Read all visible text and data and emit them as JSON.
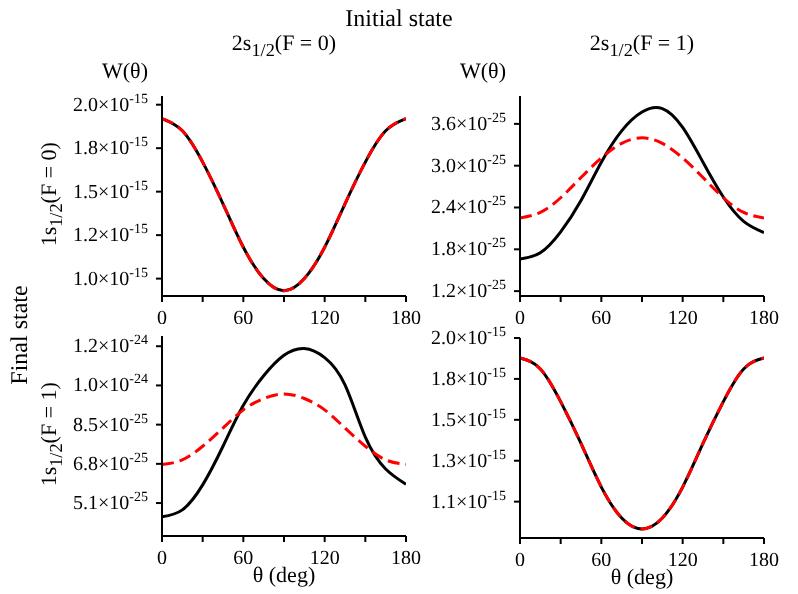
{
  "chart_data": [
    {
      "type": "line",
      "title": "2s$_{1/2}$(F = 0)",
      "ylabel": "1s$_{1/2}$(F = 0)",
      "annotations": [
        "W(θ)",
        "Initial state",
        "Final state"
      ],
      "x": [
        0,
        15,
        30,
        45,
        60,
        75,
        90,
        105,
        120,
        135,
        150,
        165,
        180
      ],
      "series": [
        {
          "color": "#000000",
          "line_style": "solid",
          "values": [
            1.92e-15,
            1.85e-15,
            1.67e-15,
            1.43e-15,
            1.18e-15,
            1e-15,
            9.3e-16,
            1e-15,
            1.18e-15,
            1.43e-15,
            1.67e-15,
            1.85e-15,
            1.92e-15
          ]
        },
        {
          "color": "#ff0000",
          "line_style": "dashed",
          "values": [
            1.92e-15,
            1.85e-15,
            1.67e-15,
            1.43e-15,
            1.18e-15,
            1e-15,
            9.3e-16,
            1e-15,
            1.18e-15,
            1.43e-15,
            1.67e-15,
            1.85e-15,
            1.92e-15
          ]
        }
      ],
      "xlim": [
        0,
        180
      ],
      "xticks": [
        0,
        {
          "value": 30,
          "label": null
        },
        60,
        {
          "value": 90,
          "label": null
        },
        120,
        {
          "value": 150,
          "label": null
        },
        180
      ],
      "ylim": [
        9e-16,
        2.05e-15
      ],
      "yticks": [
        {
          "value": 1e-15,
          "label": "1.0×10$^{-15}$"
        },
        {
          "value": 1.25e-15,
          "label": "1.2×10$^{-15}$"
        },
        {
          "value": 1.5e-15,
          "label": "1.5×10$^{-15}$"
        },
        {
          "value": 1.75e-15,
          "label": "1.8×10$^{-15}$"
        },
        {
          "value": 2e-15,
          "label": "2.0×10$^{-15}$"
        }
      ]
    },
    {
      "type": "line",
      "title": "2s$_{1/2}$(F = 1)",
      "annotations": [
        "W(θ)"
      ],
      "x": [
        0,
        15,
        30,
        45,
        60,
        75,
        90,
        105,
        120,
        135,
        150,
        165,
        180
      ],
      "series": [
        {
          "color": "#000000",
          "line_style": "solid",
          "values": [
            1.66e-25,
            1.75e-25,
            2.05e-25,
            2.5e-25,
            3.05e-25,
            3.5e-25,
            3.77e-25,
            3.82e-25,
            3.55e-25,
            3.05e-25,
            2.55e-25,
            2.2e-25,
            2.04e-25
          ]
        },
        {
          "color": "#ff0000",
          "line_style": "dashed",
          "values": [
            2.25e-25,
            2.33e-25,
            2.54e-25,
            2.83e-25,
            3.11e-25,
            3.32e-25,
            3.4e-25,
            3.32e-25,
            3.11e-25,
            2.83e-25,
            2.54e-25,
            2.33e-25,
            2.25e-25
          ]
        }
      ],
      "xlim": [
        0,
        180
      ],
      "xticks": [
        0,
        {
          "value": 30,
          "label": null
        },
        60,
        {
          "value": 90,
          "label": null
        },
        120,
        {
          "value": 150,
          "label": null
        },
        180
      ],
      "ylim": [
        1.13e-25,
        4e-25
      ],
      "yticks": [
        {
          "value": 1.2e-25,
          "label": "1.2×10$^{-25}$"
        },
        {
          "value": 1.8e-25,
          "label": "1.8×10$^{-25}$"
        },
        {
          "value": 2.4e-25,
          "label": "2.4×10$^{-25}$"
        },
        {
          "value": 3e-25,
          "label": "3.0×10$^{-25}$"
        },
        {
          "value": 3.6e-25,
          "label": "3.6×10$^{-25}$"
        }
      ]
    },
    {
      "type": "line",
      "ylabel": "1s$_{1/2}$(F = 1)",
      "xlabel": "θ (deg)",
      "x": [
        0,
        15,
        30,
        45,
        60,
        75,
        90,
        105,
        120,
        135,
        150,
        165,
        180
      ],
      "series": [
        {
          "color": "#000000",
          "line_style": "solid",
          "values": [
            4.5e-25,
            4.8e-25,
            5.9e-25,
            7.6e-25,
            9.4e-25,
            1.07e-24,
            1.16e-24,
            1.19e-24,
            1.15e-24,
            1.03e-24,
            8e-25,
            6.6e-25,
            5.93e-25
          ]
        },
        {
          "color": "#ff0000",
          "line_style": "dashed",
          "values": [
            6.8e-25,
            7e-25,
            7.6e-25,
            8.4e-25,
            9.2e-25,
            9.7e-25,
            9.9e-25,
            9.7e-25,
            9.2e-25,
            8.4e-25,
            7.6e-25,
            7e-25,
            6.8e-25
          ]
        }
      ],
      "xlim": [
        0,
        180
      ],
      "xticks": [
        0,
        {
          "value": 30,
          "label": null
        },
        60,
        {
          "value": 90,
          "label": null
        },
        120,
        {
          "value": 150,
          "label": null
        },
        180
      ],
      "ylim": [
        3.65e-25,
        1.245e-24
      ],
      "yticks": [
        {
          "value": 5.1e-25,
          "label": "5.1×10$^{-25}$"
        },
        {
          "value": 6.825e-25,
          "label": "6.8×10$^{-25}$"
        },
        {
          "value": 8.55e-25,
          "label": "8.5×10$^{-25}$"
        },
        {
          "value": 1.0275e-24,
          "label": "1.0×10$^{-24}$"
        },
        {
          "value": 1.2e-24,
          "label": "1.2×10$^{-24}$"
        }
      ]
    },
    {
      "type": "line",
      "xlabel": "θ (deg)",
      "x": [
        0,
        15,
        30,
        45,
        60,
        75,
        90,
        105,
        120,
        135,
        150,
        165,
        180
      ],
      "series": [
        {
          "color": "#000000",
          "line_style": "solid",
          "values": [
            1.89e-15,
            1.83e-15,
            1.65e-15,
            1.42e-15,
            1.18e-15,
            1.01e-15,
            9.5e-16,
            1.01e-15,
            1.18e-15,
            1.42e-15,
            1.65e-15,
            1.83e-15,
            1.89e-15
          ]
        },
        {
          "color": "#ff0000",
          "line_style": "dashed",
          "values": [
            1.89e-15,
            1.83e-15,
            1.65e-15,
            1.42e-15,
            1.18e-15,
            1.01e-15,
            9.5e-16,
            1.01e-15,
            1.18e-15,
            1.42e-15,
            1.65e-15,
            1.83e-15,
            1.89e-15
          ]
        }
      ],
      "xlim": [
        0,
        180
      ],
      "xticks": [
        0,
        {
          "value": 30,
          "label": null
        },
        60,
        {
          "value": 90,
          "label": null
        },
        120,
        {
          "value": 150,
          "label": null
        },
        180
      ],
      "ylim": [
        9e-16,
        2e-15
      ],
      "yticks": [
        {
          "value": 1.1e-15,
          "label": "1.1×10$^{-15}$"
        },
        {
          "value": 1.325e-15,
          "label": "1.3×10$^{-15}$"
        },
        {
          "value": 1.55e-15,
          "label": "1.5×10$^{-15}$"
        },
        {
          "value": 1.775e-15,
          "label": "1.8×10$^{-15}$"
        },
        {
          "value": 2e-15,
          "label": "2.0×10$^{-15}$"
        }
      ]
    }
  ]
}
